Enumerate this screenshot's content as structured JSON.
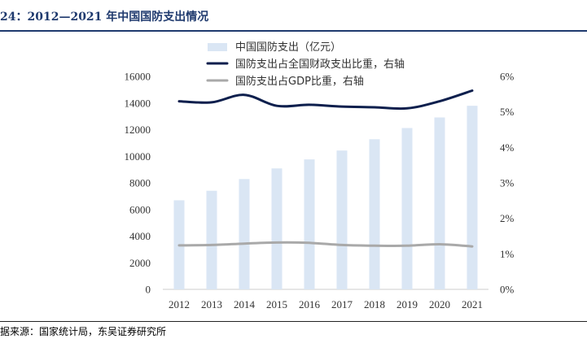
{
  "title": "24：2012—2021 年中国国防支出情况",
  "source": "据来源：国家统计局，东吴证券研究所",
  "colors": {
    "bar": "#dae6f4",
    "line_fiscal": "#0d1f4d",
    "line_gdp": "#a9a9a9",
    "title": "#1f3a6e",
    "axis": "#cccccc",
    "text": "#333333"
  },
  "chart_data": {
    "type": "bar+line",
    "categories": [
      "2012",
      "2013",
      "2014",
      "2015",
      "2016",
      "2017",
      "2018",
      "2019",
      "2020",
      "2021"
    ],
    "left_axis": {
      "ylim": [
        0,
        16000
      ],
      "ticks": [
        0,
        2000,
        4000,
        6000,
        8000,
        10000,
        12000,
        14000,
        16000
      ],
      "tick_labels": [
        "0",
        "2000",
        "4000",
        "6000",
        "8000",
        "10000",
        "12000",
        "14000",
        "16000"
      ]
    },
    "right_axis": {
      "ylim": [
        0,
        6
      ],
      "ticks": [
        0,
        1,
        2,
        3,
        4,
        5,
        6
      ],
      "tick_labels": [
        "0%",
        "1%",
        "2%",
        "3%",
        "4%",
        "5%",
        "6%"
      ]
    },
    "series": [
      {
        "name": "中国国防支出（亿元）",
        "type": "bar",
        "axis": "left",
        "values": [
          6691,
          7410,
          8290,
          9088,
          9766,
          10432,
          11280,
          12122,
          12918,
          13795
        ]
      },
      {
        "name": "国防支出占全国财政支出比重，右轴",
        "type": "line",
        "axis": "right",
        "values": [
          5.3,
          5.27,
          5.48,
          5.17,
          5.2,
          5.15,
          5.13,
          5.1,
          5.3,
          5.6
        ]
      },
      {
        "name": "国防支出占GDP比重，右轴",
        "type": "line",
        "axis": "right",
        "values": [
          1.24,
          1.25,
          1.29,
          1.32,
          1.31,
          1.25,
          1.23,
          1.23,
          1.27,
          1.21
        ]
      }
    ],
    "legend_position": "top-center"
  }
}
